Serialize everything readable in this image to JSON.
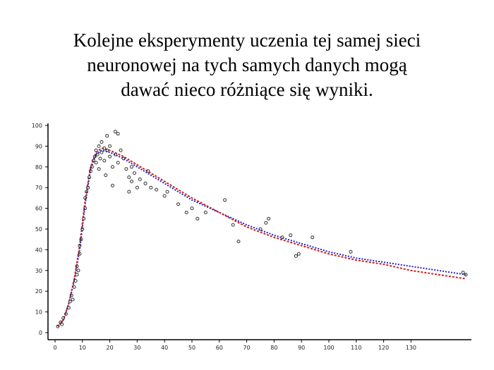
{
  "slide": {
    "title_lines": [
      "Kolejne eksperymenty uczenia tej samej sieci",
      "neuronowej na tych samych danych mogą",
      "dawać nieco różniące się wyniki."
    ]
  },
  "chart_data": {
    "type": "scatter",
    "title": "",
    "xlabel": "",
    "ylabel": "",
    "xlim": [
      0,
      150
    ],
    "ylim": [
      0,
      100
    ],
    "x_ticks": [
      0,
      10,
      20,
      30,
      40,
      50,
      60,
      70,
      80,
      90,
      100,
      110,
      120,
      130
    ],
    "y_ticks": [
      0,
      10,
      20,
      30,
      40,
      50,
      60,
      70,
      80,
      90,
      100
    ],
    "grid": false,
    "points": [
      [
        1,
        3
      ],
      [
        2,
        5
      ],
      [
        2.5,
        4
      ],
      [
        3,
        7
      ],
      [
        4,
        9
      ],
      [
        5,
        12
      ],
      [
        5.5,
        15
      ],
      [
        6,
        18
      ],
      [
        6.5,
        16
      ],
      [
        7,
        22
      ],
      [
        7.5,
        25
      ],
      [
        8,
        28
      ],
      [
        8,
        32
      ],
      [
        8.5,
        30
      ],
      [
        9,
        38
      ],
      [
        9,
        42
      ],
      [
        9.5,
        45
      ],
      [
        10,
        50
      ],
      [
        10.5,
        55
      ],
      [
        11,
        60
      ],
      [
        11,
        65
      ],
      [
        11.5,
        68
      ],
      [
        12,
        70
      ],
      [
        12.5,
        75
      ],
      [
        13,
        78
      ],
      [
        13.5,
        80
      ],
      [
        14,
        83
      ],
      [
        14.5,
        85
      ],
      [
        15,
        88
      ],
      [
        15,
        82
      ],
      [
        15.5,
        86
      ],
      [
        16,
        90
      ],
      [
        16,
        79
      ],
      [
        16.5,
        84
      ],
      [
        17,
        87
      ],
      [
        17,
        92
      ],
      [
        18,
        89
      ],
      [
        18,
        83
      ],
      [
        18.5,
        76
      ],
      [
        19,
        95
      ],
      [
        19,
        88
      ],
      [
        20,
        85
      ],
      [
        20,
        90
      ],
      [
        21,
        80
      ],
      [
        21,
        71
      ],
      [
        22,
        86
      ],
      [
        22,
        97
      ],
      [
        23,
        82
      ],
      [
        23,
        96
      ],
      [
        24,
        88
      ],
      [
        25,
        84
      ],
      [
        26,
        79
      ],
      [
        27,
        75
      ],
      [
        27,
        68
      ],
      [
        28,
        80
      ],
      [
        28,
        73
      ],
      [
        29,
        77
      ],
      [
        30,
        70
      ],
      [
        31,
        74
      ],
      [
        33,
        72
      ],
      [
        34,
        78
      ],
      [
        35,
        70
      ],
      [
        37,
        69
      ],
      [
        40,
        66
      ],
      [
        41,
        68
      ],
      [
        45,
        62
      ],
      [
        48,
        58
      ],
      [
        50,
        60
      ],
      [
        52,
        55
      ],
      [
        55,
        58
      ],
      [
        62,
        64
      ],
      [
        65,
        52
      ],
      [
        67,
        44
      ],
      [
        75,
        50
      ],
      [
        77,
        53
      ],
      [
        78,
        55
      ],
      [
        83,
        46
      ],
      [
        86,
        47
      ],
      [
        88,
        37
      ],
      [
        89,
        38
      ],
      [
        94,
        46
      ],
      [
        108,
        39
      ],
      [
        149,
        29
      ],
      [
        150,
        28
      ]
    ],
    "series": [
      {
        "color": "#2222cc",
        "dash": "2,2",
        "x": [
          1,
          3,
          5,
          7,
          9,
          11,
          13,
          15,
          17,
          20,
          25,
          30,
          40,
          50,
          60,
          70,
          80,
          90,
          100,
          110,
          120,
          130,
          140,
          150
        ],
        "y": [
          3,
          6,
          14,
          25,
          40,
          62,
          79,
          86,
          88,
          87,
          84,
          80,
          72,
          64,
          58,
          52,
          47,
          43,
          39,
          36,
          34,
          32,
          30,
          28
        ]
      },
      {
        "color": "#cc2222",
        "dash": "3,2",
        "x": [
          1,
          3,
          5,
          7,
          9,
          11,
          13,
          15,
          17,
          20,
          25,
          30,
          40,
          50,
          60,
          70,
          80,
          90,
          100,
          110,
          120,
          130,
          140,
          150
        ],
        "y": [
          3,
          6,
          14,
          26,
          42,
          64,
          80,
          87,
          89,
          88,
          85,
          81,
          73,
          65,
          58,
          51,
          46,
          42,
          38,
          35,
          33,
          30,
          28,
          26
        ]
      }
    ]
  }
}
